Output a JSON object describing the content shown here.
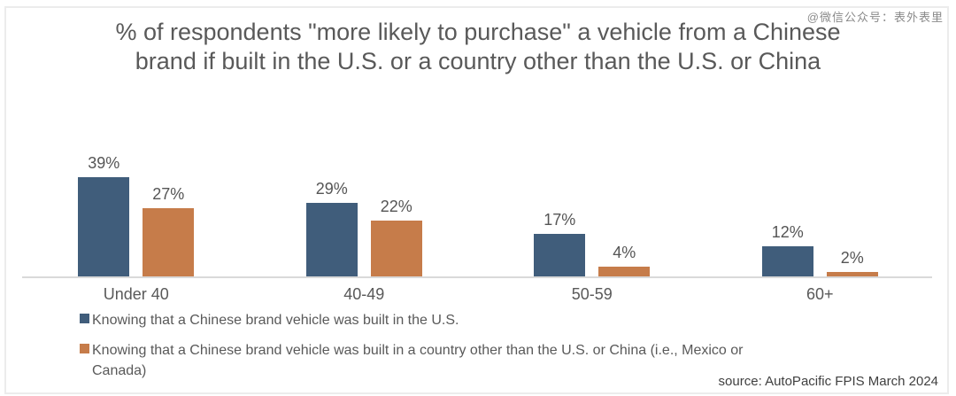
{
  "watermark": "@微信公众号：表外表里",
  "title": {
    "line1": "% of respondents \"more likely to purchase\" a vehicle from a Chinese",
    "line2": "brand if built in the U.S. or a country other than the U.S. or China"
  },
  "source": "source: AutoPacific FPIS March 2024",
  "colors": {
    "series_blue": "#405D7B",
    "series_orange": "#C67C4A",
    "text": "#595959",
    "axis_line": "#D9D9D9"
  },
  "chart_data": {
    "type": "bar",
    "title": "% of respondents \"more likely to purchase\" a vehicle from a Chinese brand if built in the U.S. or a country other than the U.S. or China",
    "categories": [
      "Under 40",
      "40-49",
      "50-59",
      "60+"
    ],
    "series": [
      {
        "name": "Knowing that a Chinese brand vehicle was built in the U.S.",
        "color": "#405D7B",
        "values": [
          39,
          29,
          17,
          12
        ],
        "labels": [
          "39%",
          "29%",
          "17%",
          "12%"
        ]
      },
      {
        "name": "Knowing that a Chinese brand vehicle was built in a country other than the U.S. or China (i.e., Mexico or Canada)",
        "color": "#C67C4A",
        "values": [
          27,
          22,
          4,
          2
        ],
        "labels": [
          "27%",
          "22%",
          "4%",
          "2%"
        ]
      }
    ],
    "value_suffix": "%",
    "ylim": [
      0,
      45
    ],
    "grid": false,
    "y_axis_visible": false,
    "data_labels": true,
    "legend_position": "bottom-left"
  }
}
